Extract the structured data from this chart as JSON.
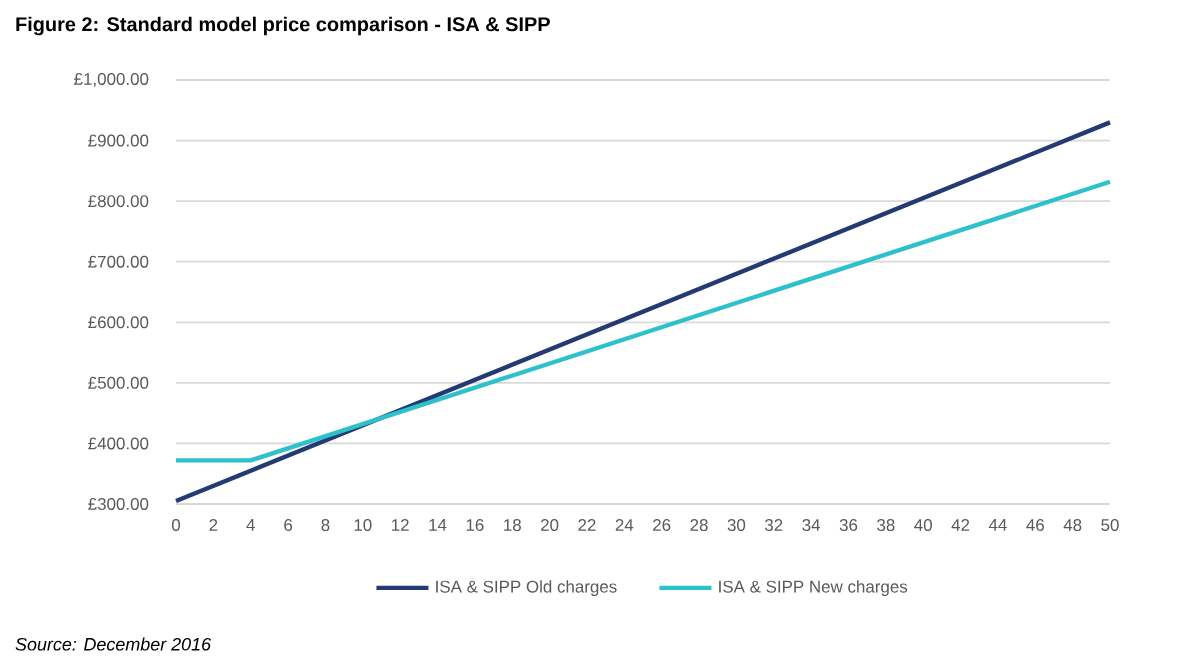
{
  "chart_data": {
    "type": "line",
    "title": "Figure 2: Standard model price comparison - ISA & SIPP",
    "series": [
      {
        "name": "ISA & SIPP Old charges",
        "color": "#243a73",
        "x": [
          0,
          50
        ],
        "values": [
          305,
          930
        ]
      },
      {
        "name": "ISA & SIPP New charges",
        "color": "#2ec1cc",
        "x": [
          0,
          4,
          50
        ],
        "values": [
          372,
          372,
          832
        ]
      }
    ],
    "xlim": [
      0,
      50
    ],
    "xticks": [
      0,
      2,
      4,
      6,
      8,
      10,
      12,
      14,
      16,
      18,
      20,
      22,
      24,
      26,
      28,
      30,
      32,
      34,
      36,
      38,
      40,
      42,
      44,
      46,
      48,
      50
    ],
    "ylim": [
      300,
      1000
    ],
    "yticks": [
      {
        "value": 300,
        "label": "£300.00"
      },
      {
        "value": 400,
        "label": "£400.00"
      },
      {
        "value": 500,
        "label": "£500.00"
      },
      {
        "value": 600,
        "label": "£600.00"
      },
      {
        "value": 700,
        "label": "£700.00"
      },
      {
        "value": 800,
        "label": "£800.00"
      },
      {
        "value": 900,
        "label": "£900.00"
      },
      {
        "value": 1000,
        "label": "£1,000.00"
      }
    ],
    "grid": "y",
    "legend": "bottom",
    "marker": "none",
    "line_style": "solid",
    "annotations": [
      "Source: December 2016"
    ]
  }
}
